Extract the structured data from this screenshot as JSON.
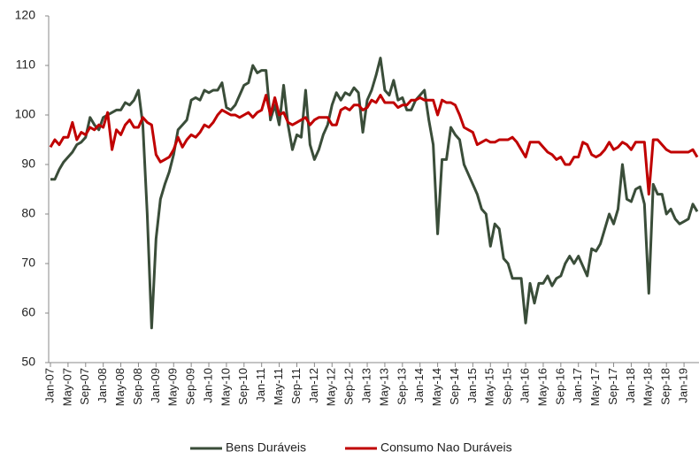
{
  "chart_data": {
    "type": "line",
    "categories": [
      "Jan-07",
      null,
      null,
      null,
      "May-07",
      null,
      null,
      null,
      "Sep-07",
      null,
      null,
      null,
      "Jan-08",
      null,
      null,
      null,
      "May-08",
      null,
      null,
      null,
      "Sep-08",
      null,
      null,
      null,
      "Jan-09",
      null,
      null,
      null,
      "May-09",
      null,
      null,
      null,
      "Sep-09",
      null,
      null,
      null,
      "Jan-10",
      null,
      null,
      null,
      "May-10",
      null,
      null,
      null,
      "Sep-10",
      null,
      null,
      null,
      "Jan-11",
      null,
      null,
      null,
      "May-11",
      null,
      null,
      null,
      "Sep-11",
      null,
      null,
      null,
      "Jan-12",
      null,
      null,
      null,
      "May-12",
      null,
      null,
      null,
      "Sep-12",
      null,
      null,
      null,
      "Jan-13",
      null,
      null,
      null,
      "May-13",
      null,
      null,
      null,
      "Sep-13",
      null,
      null,
      null,
      "Jan-14",
      null,
      null,
      null,
      "May-14",
      null,
      null,
      null,
      "Sep-14",
      null,
      null,
      null,
      "Jan-15",
      null,
      null,
      null,
      "May-15",
      null,
      null,
      null,
      "Sep-15",
      null,
      null,
      null,
      "Jan-16",
      null,
      null,
      null,
      "May-16",
      null,
      null,
      null,
      "Sep-16",
      null,
      null,
      null,
      "Jan-17",
      null,
      null,
      null,
      "May-17",
      null,
      null,
      null,
      "Sep-17",
      null,
      null,
      null,
      "Jan-18",
      null,
      null,
      null,
      "May-18",
      null,
      null,
      null,
      "Sep-18",
      null,
      null,
      null,
      "Jan-19",
      null,
      null,
      null
    ],
    "series": [
      {
        "name": "Bens Duráveis",
        "color": "#3a4d39",
        "values": [
          87,
          87,
          89,
          90.5,
          91.5,
          92.5,
          94,
          94.5,
          95.5,
          99.5,
          98,
          97,
          99.5,
          100,
          100.5,
          101,
          101,
          102.5,
          102,
          103,
          105,
          98,
          80,
          57,
          75,
          83,
          86,
          88.5,
          92,
          97,
          98,
          99,
          103,
          103.5,
          103,
          105,
          104.5,
          105,
          105,
          106.5,
          101.5,
          101,
          102,
          104,
          106,
          106.5,
          110,
          108.5,
          109,
          109,
          99,
          102,
          98,
          106,
          98,
          93,
          96,
          95.5,
          105,
          94,
          91,
          93,
          96,
          98,
          102,
          104.5,
          103,
          104.5,
          104,
          105.5,
          104.5,
          96.5,
          103,
          105,
          108,
          111.5,
          105,
          104,
          107,
          103,
          103.5,
          101,
          101,
          103,
          104,
          105,
          99,
          94,
          76,
          91,
          91,
          97.5,
          96,
          95,
          90,
          88,
          86,
          84,
          81,
          80,
          73.5,
          78,
          77,
          71,
          70,
          67,
          67,
          67,
          58,
          66,
          62,
          66,
          66,
          67.5,
          65.5,
          67,
          67.5,
          70,
          71.5,
          70,
          71.5,
          69.5,
          67.5,
          73,
          72.5,
          74,
          77,
          80,
          78,
          81,
          90,
          83,
          82.5,
          85,
          85.5,
          82,
          64,
          86,
          84,
          84,
          80,
          81,
          79,
          78,
          78.5,
          79,
          82,
          80.5
        ]
      },
      {
        "name": "Consumo Nao Duráveis",
        "color": "#c00000",
        "values": [
          93.5,
          95,
          94,
          95.5,
          95.5,
          98.5,
          95,
          96.5,
          96,
          97.5,
          97,
          98,
          97.5,
          100.5,
          93,
          97,
          96,
          98,
          99,
          97.5,
          97.5,
          99.5,
          98.5,
          98,
          92,
          90.5,
          91,
          91.5,
          93,
          95.5,
          93.5,
          95,
          96,
          95.5,
          96.5,
          98,
          97.5,
          98.5,
          100,
          101,
          100.5,
          100,
          100,
          99.5,
          100,
          100.5,
          99.5,
          100.5,
          101,
          104,
          100,
          103.5,
          100,
          100.5,
          98.5,
          98,
          98.5,
          99,
          99.5,
          98,
          99,
          99.5,
          99.5,
          99.5,
          98,
          98,
          101,
          101.5,
          101,
          102,
          102,
          101,
          101.5,
          103,
          102.5,
          104,
          102.5,
          102.5,
          102.5,
          101.5,
          102,
          102,
          103,
          103,
          103.5,
          103,
          103,
          103,
          100,
          103,
          102.5,
          102.5,
          102,
          100,
          97.5,
          97,
          96.5,
          94,
          94.5,
          95,
          94.5,
          94.5,
          95,
          95,
          95,
          95.5,
          94.5,
          93,
          91.5,
          94.5,
          94.5,
          94.5,
          93.5,
          92.5,
          92,
          91,
          91.5,
          90,
          90,
          91.5,
          91.5,
          94.5,
          94,
          92,
          91.5,
          92,
          93,
          94.5,
          93,
          93.5,
          94.5,
          94,
          93,
          94.5,
          94.5,
          94.5,
          84,
          95,
          95,
          94,
          93,
          92.5,
          92.5,
          92.5,
          92.5,
          92.5,
          93,
          91.5
        ]
      }
    ],
    "ylim": [
      50,
      120
    ],
    "yticks": [
      50,
      60,
      70,
      80,
      90,
      100,
      110,
      120
    ],
    "grid": false,
    "legend": "bottom"
  }
}
